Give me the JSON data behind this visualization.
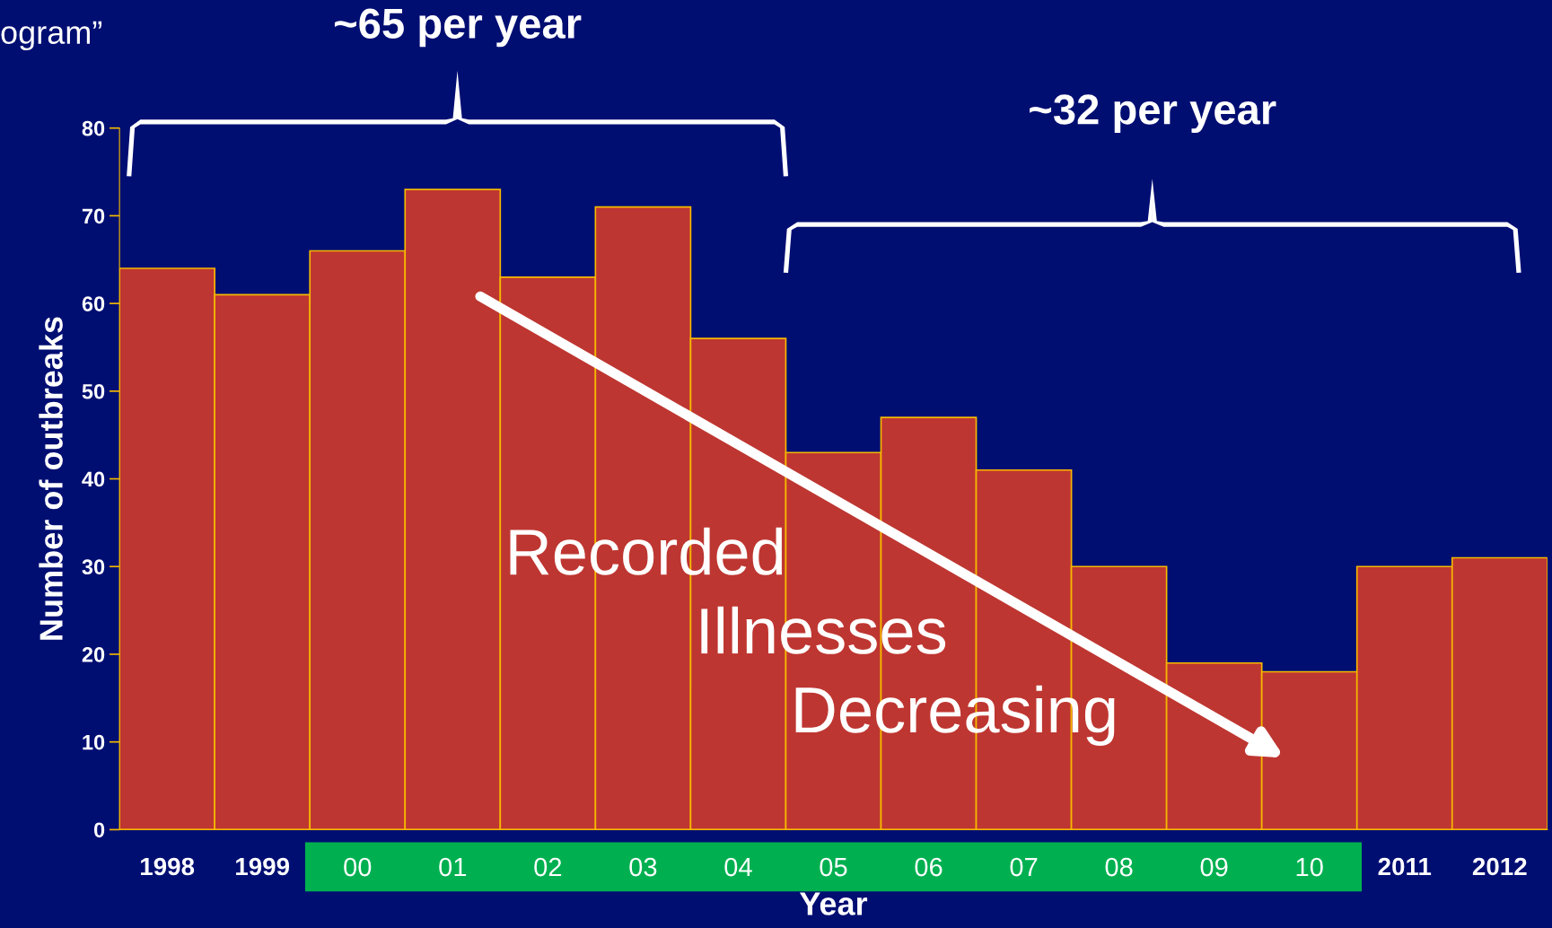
{
  "chart_data": {
    "type": "bar",
    "xlabel": "Year",
    "ylabel": "Number of outbreaks",
    "categories": [
      "1998",
      "1999",
      "00",
      "01",
      "02",
      "03",
      "04",
      "05",
      "06",
      "07",
      "08",
      "09",
      "10",
      "2011",
      "2012"
    ],
    "values": [
      64,
      61,
      66,
      73,
      63,
      71,
      56,
      43,
      47,
      41,
      30,
      19,
      18,
      30,
      31
    ],
    "color": "#be3631",
    "ylim": [
      0,
      80
    ],
    "yticks": [
      0,
      10,
      20,
      30,
      40,
      50,
      60,
      70,
      80
    ],
    "grid": false,
    "legend": false,
    "annotations": [
      "ogram”",
      "~65 per year",
      "~32 per year",
      "Recorded Illnesses Decreasing"
    ]
  }
}
